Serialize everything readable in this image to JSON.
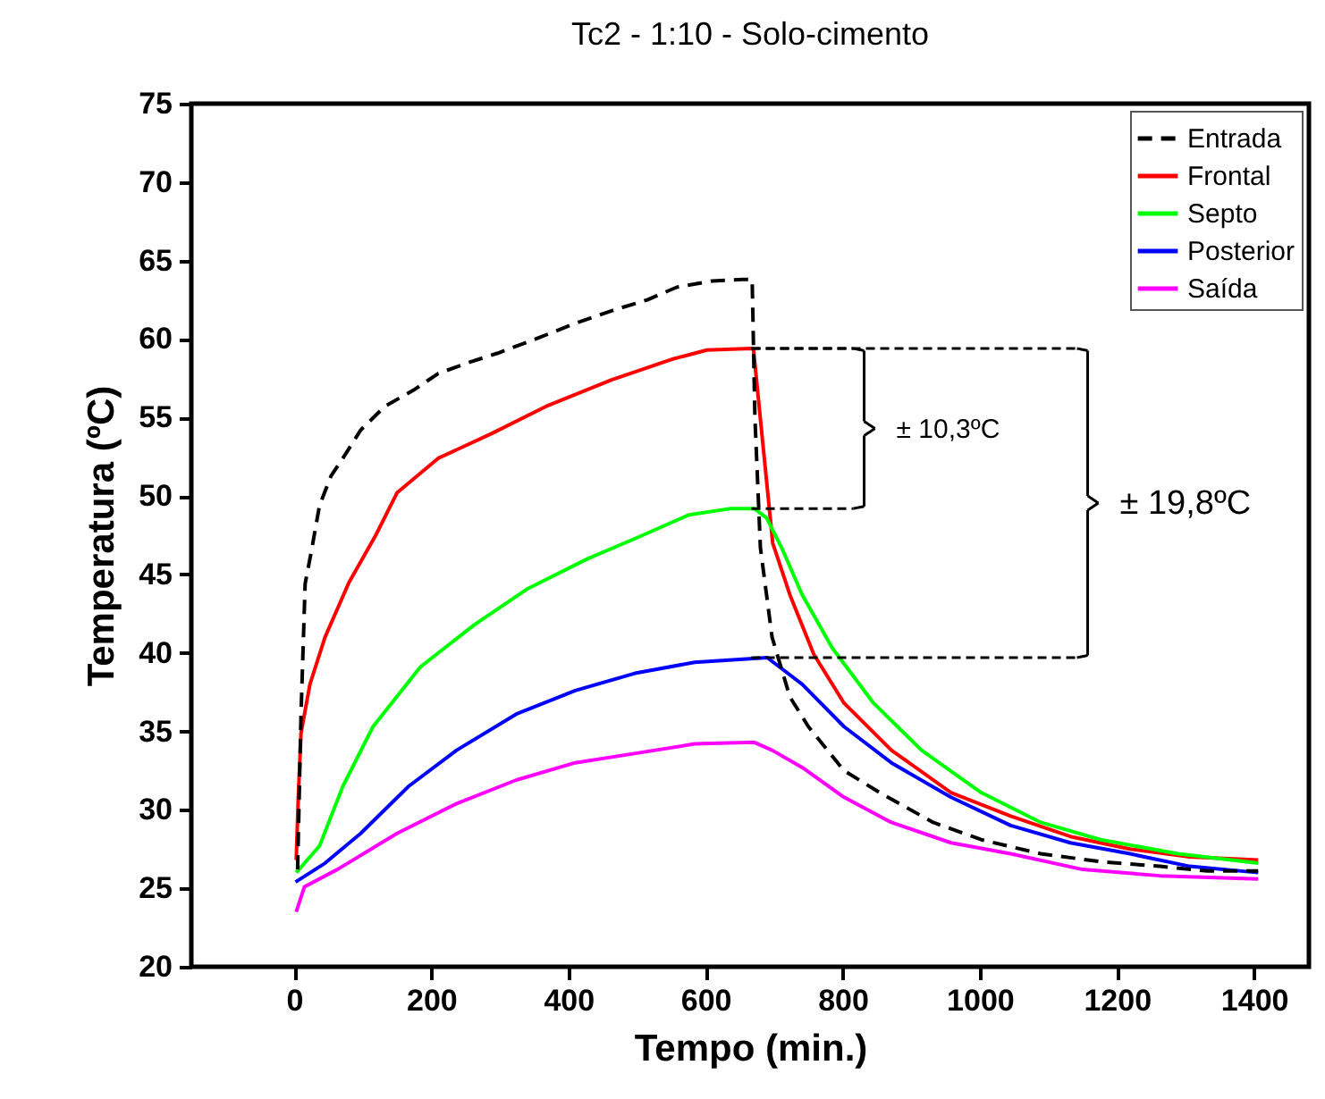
{
  "chart_data": {
    "type": "line",
    "title": "Tc2 - 1:10 - Solo-cimento",
    "xlabel": "Tempo (min.)",
    "ylabel": "Temperatura (ºC)",
    "xlim": [
      -150,
      1480
    ],
    "xticks": [
      0,
      200,
      400,
      600,
      800,
      1000,
      1200,
      1400
    ],
    "ylim": [
      20,
      75
    ],
    "yticks": [
      20,
      25,
      30,
      35,
      40,
      45,
      50,
      55,
      60,
      65,
      70,
      75
    ],
    "grid": false,
    "legend": "top right",
    "annotations": [
      "± 10,3ºC",
      "± 19,8ºC"
    ],
    "series": [
      {
        "name": "Entrada",
        "color": "#000000",
        "line_style": "dashed",
        "x": [
          5,
          10,
          16,
          26,
          37,
          54,
          71,
          97,
          132,
          176,
          210,
          254,
          297,
          358,
          410,
          463,
          515,
          558,
          610,
          654,
          668,
          672,
          680,
          697,
          723,
          750,
          802,
          854,
          932,
          1002,
          1089,
          1176,
          1263,
          1332,
          1406
        ],
        "values": [
          26.2,
          36.1,
          44.4,
          46.7,
          49.4,
          51.3,
          52.4,
          54.2,
          55.7,
          56.8,
          57.8,
          58.5,
          59.1,
          60.1,
          61.0,
          61.8,
          62.5,
          63.3,
          63.7,
          63.8,
          63.8,
          55.0,
          46.7,
          41.0,
          37.2,
          35.3,
          32.5,
          31.1,
          29.2,
          28.1,
          27.2,
          26.7,
          26.4,
          26.1,
          26.1
        ]
      },
      {
        "name": "Frontal",
        "color": "#ff0000",
        "line_style": "solid",
        "x": [
          3,
          6,
          10,
          23,
          45,
          80,
          119,
          150,
          210,
          289,
          367,
          463,
          550,
          602,
          667,
          670,
          698,
          723,
          758,
          802,
          871,
          958,
          1045,
          1132,
          1219,
          1306,
          1406
        ],
        "values": [
          26.8,
          30.8,
          34.9,
          38.0,
          41.0,
          44.5,
          47.5,
          50.2,
          52.4,
          54.0,
          55.7,
          57.4,
          58.7,
          59.3,
          59.4,
          59.3,
          47.0,
          43.7,
          39.9,
          36.8,
          33.8,
          31.1,
          29.6,
          28.3,
          27.5,
          27.0,
          26.8
        ]
      },
      {
        "name": "Septo",
        "color": "#00ff00",
        "line_style": "solid",
        "x": [
          3,
          37,
          71,
          115,
          184,
          263,
          341,
          428,
          498,
          576,
          637,
          671,
          689,
          711,
          741,
          785,
          845,
          915,
          1002,
          1089,
          1176,
          1289,
          1406
        ],
        "values": [
          26.0,
          27.7,
          31.5,
          35.3,
          39.1,
          41.8,
          44.1,
          46.0,
          47.3,
          48.8,
          49.2,
          49.2,
          48.6,
          46.7,
          43.7,
          40.3,
          36.8,
          33.8,
          31.1,
          29.2,
          28.1,
          27.2,
          26.6
        ]
      },
      {
        "name": "Posterior",
        "color": "#0000ff",
        "line_style": "solid",
        "x": [
          2,
          45,
          97,
          167,
          237,
          324,
          410,
          497,
          584,
          690,
          741,
          802,
          871,
          958,
          1045,
          1132,
          1219,
          1306,
          1406
        ],
        "values": [
          25.4,
          26.6,
          28.5,
          31.5,
          33.8,
          36.1,
          37.6,
          38.7,
          39.4,
          39.7,
          38.0,
          35.3,
          33.0,
          30.8,
          29.0,
          27.9,
          27.2,
          26.4,
          26.0
        ]
      },
      {
        "name": "Saída",
        "color": "#ff00ff",
        "line_style": "solid",
        "x": [
          3,
          15,
          63,
          150,
          237,
          324,
          410,
          498,
          584,
          671,
          697,
          741,
          802,
          871,
          958,
          1045,
          1150,
          1263,
          1406
        ],
        "values": [
          23.5,
          25.1,
          26.2,
          28.5,
          30.4,
          31.9,
          33.0,
          33.6,
          34.2,
          34.3,
          33.8,
          32.7,
          30.8,
          29.2,
          27.9,
          27.2,
          26.2,
          25.8,
          25.6
        ]
      }
    ]
  }
}
